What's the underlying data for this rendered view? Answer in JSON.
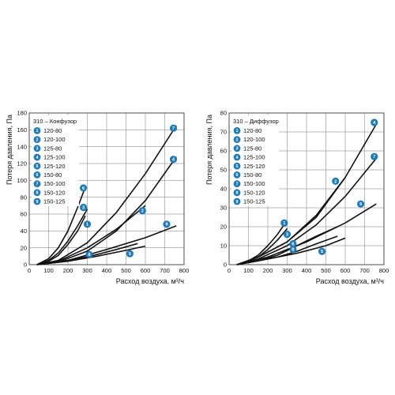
{
  "colors": {
    "curve": "#111111",
    "badge": "#1f7ab8",
    "badge_text": "#ffffff",
    "grid": "#777777"
  },
  "chart_data": [
    {
      "type": "line",
      "title": "310 – Конфузор",
      "xlabel": "Расход воздуха, м³/ч",
      "ylabel": "Потеря давления, Па",
      "xlim": [
        0,
        800
      ],
      "ylim": [
        0,
        180
      ],
      "xticks": [
        "0",
        "100",
        "200",
        "300",
        "400",
        "500",
        "600",
        "700",
        "800"
      ],
      "yticks": [
        "0",
        "20",
        "40",
        "60",
        "80",
        "100",
        "120",
        "140",
        "160",
        "180"
      ],
      "grid": true,
      "legend": [
        {
          "id": "1",
          "label": "120-80"
        },
        {
          "id": "2",
          "label": "120-100"
        },
        {
          "id": "3",
          "label": "125-80"
        },
        {
          "id": "4",
          "label": "125-100"
        },
        {
          "id": "5",
          "label": "125-120"
        },
        {
          "id": "6",
          "label": "150-80"
        },
        {
          "id": "7",
          "label": "150-100"
        },
        {
          "id": "8",
          "label": "150-120"
        },
        {
          "id": "9",
          "label": "150-125"
        }
      ],
      "series": [
        {
          "id": "6",
          "x": [
            40,
            100,
            150,
            200,
            250,
            290
          ],
          "y": [
            0,
            7,
            20,
            40,
            68,
            92
          ]
        },
        {
          "id": "3",
          "x": [
            40,
            100,
            150,
            200,
            250,
            300
          ],
          "y": [
            0,
            5,
            14,
            28,
            46,
            66
          ]
        },
        {
          "id": "1",
          "x": [
            40,
            100,
            150,
            200,
            250,
            290
          ],
          "y": [
            0,
            4,
            11,
            24,
            40,
            58
          ]
        },
        {
          "id": "7",
          "x": [
            40,
            150,
            300,
            450,
            600,
            760
          ],
          "y": [
            0,
            5,
            26,
            62,
            108,
            165
          ]
        },
        {
          "id": "2",
          "x": [
            40,
            150,
            300,
            450,
            600
          ],
          "y": [
            0,
            4,
            20,
            42,
            70
          ]
        },
        {
          "id": "4",
          "x": [
            40,
            150,
            300,
            450,
            600,
            760
          ],
          "y": [
            0,
            3,
            16,
            40,
            76,
            128
          ]
        },
        {
          "id": "9",
          "x": [
            40,
            200,
            400,
            600,
            760
          ],
          "y": [
            0,
            5,
            18,
            32,
            46
          ]
        },
        {
          "id": "8",
          "x": [
            40,
            150,
            250,
            350,
            450,
            560
          ],
          "y": [
            0,
            3,
            7,
            12,
            18,
            25
          ]
        },
        {
          "id": "5",
          "x": [
            40,
            200,
            350,
            500,
            600
          ],
          "y": [
            0,
            4,
            10,
            17,
            22
          ]
        }
      ],
      "labels": [
        {
          "id": "6",
          "x": 280,
          "y": 91
        },
        {
          "id": "3",
          "x": 280,
          "y": 68
        },
        {
          "id": "1",
          "x": 300,
          "y": 48
        },
        {
          "id": "7",
          "x": 745,
          "y": 162
        },
        {
          "id": "4",
          "x": 745,
          "y": 125
        },
        {
          "id": "2",
          "x": 585,
          "y": 64
        },
        {
          "id": "9",
          "x": 710,
          "y": 48
        },
        {
          "id": "8",
          "x": 310,
          "y": 12
        },
        {
          "id": "5",
          "x": 520,
          "y": 13
        }
      ]
    },
    {
      "type": "line",
      "title": "310 – Диффузор",
      "xlabel": "Расход воздуха, м³/ч",
      "ylabel": "Потеря давления, Па",
      "xlim": [
        0,
        800
      ],
      "ylim": [
        0,
        80
      ],
      "xticks": [
        "0",
        "100",
        "200",
        "300",
        "400",
        "500",
        "600",
        "700",
        "800"
      ],
      "yticks": [
        "0",
        "10",
        "20",
        "30",
        "40",
        "50",
        "60",
        "70",
        "80"
      ],
      "grid": true,
      "legend": [
        {
          "id": "1",
          "label": "120-80"
        },
        {
          "id": "2",
          "label": "120-100"
        },
        {
          "id": "3",
          "label": "125-80"
        },
        {
          "id": "4",
          "label": "125-100"
        },
        {
          "id": "5",
          "label": "125-120"
        },
        {
          "id": "6",
          "label": "150-80"
        },
        {
          "id": "7",
          "label": "150-100"
        },
        {
          "id": "8",
          "label": "150-120"
        },
        {
          "id": "9",
          "label": "150-125"
        }
      ],
      "series": [
        {
          "id": "1",
          "x": [
            40,
            100,
            150,
            200,
            250,
            290
          ],
          "y": [
            0,
            2,
            5,
            10,
            16,
            22
          ]
        },
        {
          "id": "3",
          "x": [
            40,
            100,
            150,
            200,
            250,
            300
          ],
          "y": [
            0,
            2,
            4,
            8,
            13,
            19
          ]
        },
        {
          "id": "4",
          "x": [
            40,
            150,
            300,
            450,
            600,
            760
          ],
          "y": [
            0,
            4,
            12,
            25,
            46,
            74
          ]
        },
        {
          "id": "2",
          "x": [
            40,
            150,
            300,
            450,
            600
          ],
          "y": [
            0,
            4,
            12,
            26,
            46
          ]
        },
        {
          "id": "7",
          "x": [
            40,
            150,
            300,
            450,
            600,
            760
          ],
          "y": [
            0,
            3,
            10,
            21,
            36,
            56
          ]
        },
        {
          "id": "9",
          "x": [
            40,
            200,
            400,
            600,
            760
          ],
          "y": [
            0,
            4,
            12,
            22,
            32
          ]
        },
        {
          "id": "6",
          "x": [
            40,
            150,
            250,
            350,
            450,
            560
          ],
          "y": [
            0,
            2,
            5,
            10,
            15,
            20
          ]
        },
        {
          "id": "8",
          "x": [
            40,
            150,
            250,
            350,
            450,
            560
          ],
          "y": [
            0,
            2,
            4,
            7,
            11,
            15
          ]
        },
        {
          "id": "5",
          "x": [
            40,
            200,
            350,
            500,
            600
          ],
          "y": [
            0,
            3,
            6,
            10,
            14
          ]
        }
      ],
      "labels": [
        {
          "id": "1",
          "x": 285,
          "y": 22
        },
        {
          "id": "3",
          "x": 300,
          "y": 16
        },
        {
          "id": "6",
          "x": 330,
          "y": 11
        },
        {
          "id": "8",
          "x": 330,
          "y": 8
        },
        {
          "id": "2",
          "x": 550,
          "y": 44
        },
        {
          "id": "4",
          "x": 750,
          "y": 75
        },
        {
          "id": "7",
          "x": 750,
          "y": 57
        },
        {
          "id": "9",
          "x": 680,
          "y": 32
        },
        {
          "id": "5",
          "x": 480,
          "y": 7
        }
      ]
    }
  ]
}
